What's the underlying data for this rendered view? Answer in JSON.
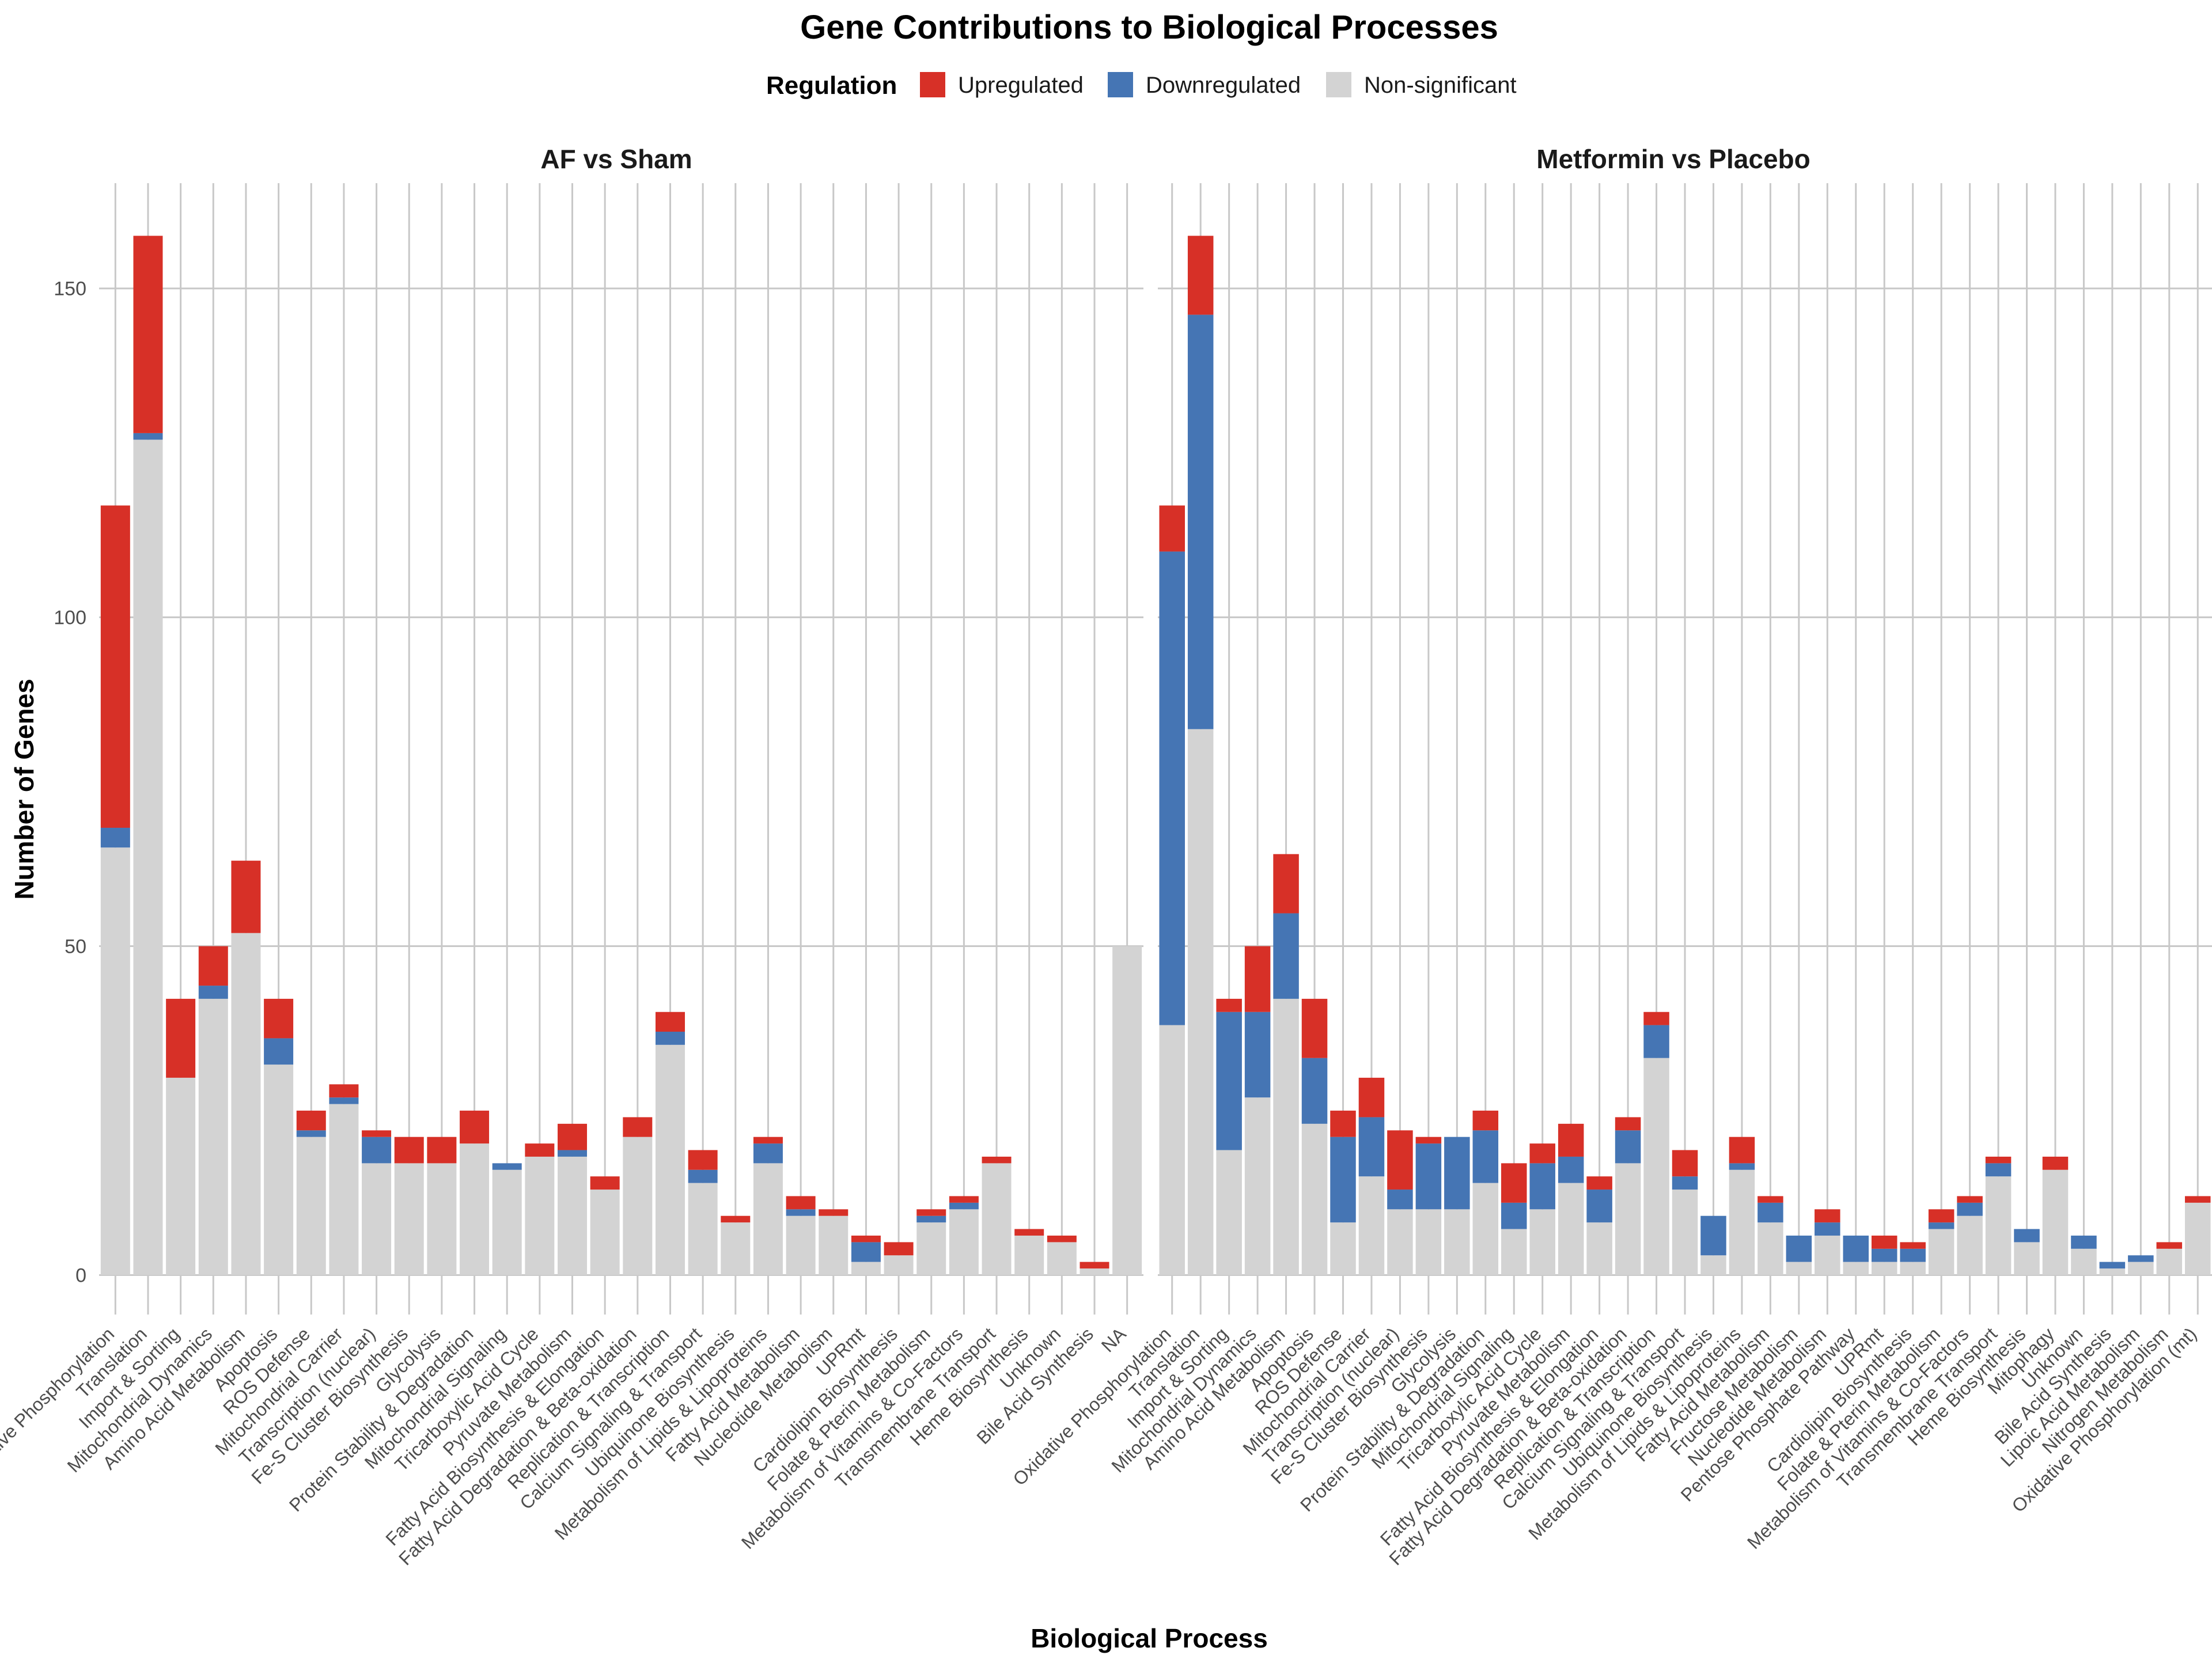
{
  "chart_data": {
    "type": "bar",
    "title": "Gene Contributions to Biological Processes",
    "xlabel": "Biological Process",
    "ylabel": "Number of Genes",
    "ylim": [
      -6,
      166
    ],
    "yticks": [
      0,
      50,
      100,
      150
    ],
    "stacked": true,
    "grid": true,
    "legend": {
      "title": "Regulation",
      "position": "top",
      "entries": [
        {
          "label": "Upregulated",
          "color": "#d73027"
        },
        {
          "label": "Downregulated",
          "color": "#4575b4"
        },
        {
          "label": "Non-significant",
          "color": "#d3d3d3"
        }
      ]
    },
    "stack_order": [
      "Non-significant",
      "Downregulated",
      "Upregulated"
    ],
    "panels": [
      {
        "title": "AF vs Sham",
        "categories": [
          "Oxidative Phosphorylation",
          "Translation",
          "Import & Sorting",
          "Mitochondrial Dynamics",
          "Amino Acid Metabolism",
          "Apoptosis",
          "ROS Defense",
          "Mitochondrial Carrier",
          "Transcription (nuclear)",
          "Fe-S Cluster Biosynthesis",
          "Glycolysis",
          "Protein Stability & Degradation",
          "Mitochondrial Signaling",
          "Tricarboxylic Acid Cycle",
          "Pyruvate Metabolism",
          "Fatty Acid Biosynthesis & Elongation",
          "Fatty Acid Degradation & Beta-oxidation",
          "Replication & Transcription",
          "Calcium Signaling & Transport",
          "Ubiquinone Biosynthesis",
          "Metabolism of Lipids & Lipoproteins",
          "Fatty Acid Metabolism",
          "Nucleotide Metabolism",
          "UPRmt",
          "Cardiolipin Biosynthesis",
          "Folate & Pterin Metabolism",
          "Metabolism of Vitamins & Co-Factors",
          "Transmembrane Transport",
          "Heme Biosynthesis",
          "Unknown",
          "Bile Acid Synthesis",
          "NA"
        ],
        "series": [
          {
            "name": "Non-significant",
            "values": [
              65,
              127,
              30,
              42,
              52,
              32,
              21,
              26,
              17,
              17,
              17,
              20,
              16,
              18,
              18,
              13,
              21,
              35,
              14,
              8,
              17,
              9,
              9,
              2,
              3,
              8,
              10,
              17,
              6,
              5,
              1,
              50
            ]
          },
          {
            "name": "Downregulated",
            "values": [
              3,
              1,
              0,
              2,
              0,
              4,
              1,
              1,
              4,
              0,
              0,
              0,
              1,
              0,
              1,
              0,
              0,
              2,
              2,
              0,
              3,
              1,
              0,
              3,
              0,
              1,
              1,
              0,
              0,
              0,
              0,
              0
            ]
          },
          {
            "name": "Upregulated",
            "values": [
              49,
              30,
              12,
              6,
              11,
              6,
              3,
              2,
              1,
              4,
              4,
              5,
              0,
              2,
              4,
              2,
              3,
              3,
              3,
              1,
              1,
              2,
              1,
              1,
              2,
              1,
              1,
              1,
              1,
              1,
              1,
              0
            ]
          }
        ]
      },
      {
        "title": "Metformin vs Placebo",
        "categories": [
          "Oxidative Phosphorylation",
          "Translation",
          "Import & Sorting",
          "Mitochondrial Dynamics",
          "Amino Acid Metabolism",
          "Apoptosis",
          "ROS Defense",
          "Mitochondrial Carrier",
          "Transcription (nuclear)",
          "Fe-S Cluster Biosynthesis",
          "Glycolysis",
          "Protein Stability & Degradation",
          "Mitochondrial Signaling",
          "Tricarboxylic Acid Cycle",
          "Pyruvate Metabolism",
          "Fatty Acid Biosynthesis & Elongation",
          "Fatty Acid Degradation & Beta-oxidation",
          "Replication & Transcription",
          "Calcium Signaling & Transport",
          "Ubiquinone Biosynthesis",
          "Metabolism of Lipids & Lipoproteins",
          "Fatty Acid Metabolism",
          "Fructose Metabolism",
          "Nucleotide Metabolism",
          "Pentose Phosphate Pathway",
          "UPRmt",
          "Cardiolipin Biosynthesis",
          "Folate & Pterin Metabolism",
          "Metabolism of Vitamins & Co-Factors",
          "Transmembrane Transport",
          "Heme Biosynthesis",
          "Mitophagy",
          "Unknown",
          "Bile Acid Synthesis",
          "Lipoic Acid Metabolism",
          "Nitrogen Metabolism",
          "Oxidative Phosphorylation (mt)"
        ],
        "series": [
          {
            "name": "Non-significant",
            "values": [
              38,
              83,
              19,
              27,
              42,
              23,
              8,
              15,
              10,
              10,
              10,
              14,
              7,
              10,
              14,
              8,
              17,
              33,
              13,
              3,
              16,
              8,
              2,
              6,
              2,
              2,
              2,
              7,
              9,
              15,
              5,
              16,
              4,
              1,
              2,
              4,
              11
            ]
          },
          {
            "name": "Downregulated",
            "values": [
              72,
              63,
              21,
              13,
              13,
              10,
              13,
              9,
              3,
              10,
              11,
              8,
              4,
              7,
              4,
              5,
              5,
              5,
              2,
              6,
              1,
              3,
              4,
              2,
              4,
              2,
              2,
              1,
              2,
              2,
              2,
              0,
              2,
              1,
              1,
              0,
              0
            ]
          },
          {
            "name": "Upregulated",
            "values": [
              7,
              12,
              2,
              10,
              9,
              9,
              4,
              6,
              9,
              1,
              0,
              3,
              6,
              3,
              5,
              2,
              2,
              2,
              4,
              0,
              4,
              1,
              0,
              2,
              0,
              2,
              1,
              2,
              1,
              1,
              0,
              2,
              0,
              0,
              0,
              1,
              1
            ]
          }
        ]
      }
    ]
  }
}
